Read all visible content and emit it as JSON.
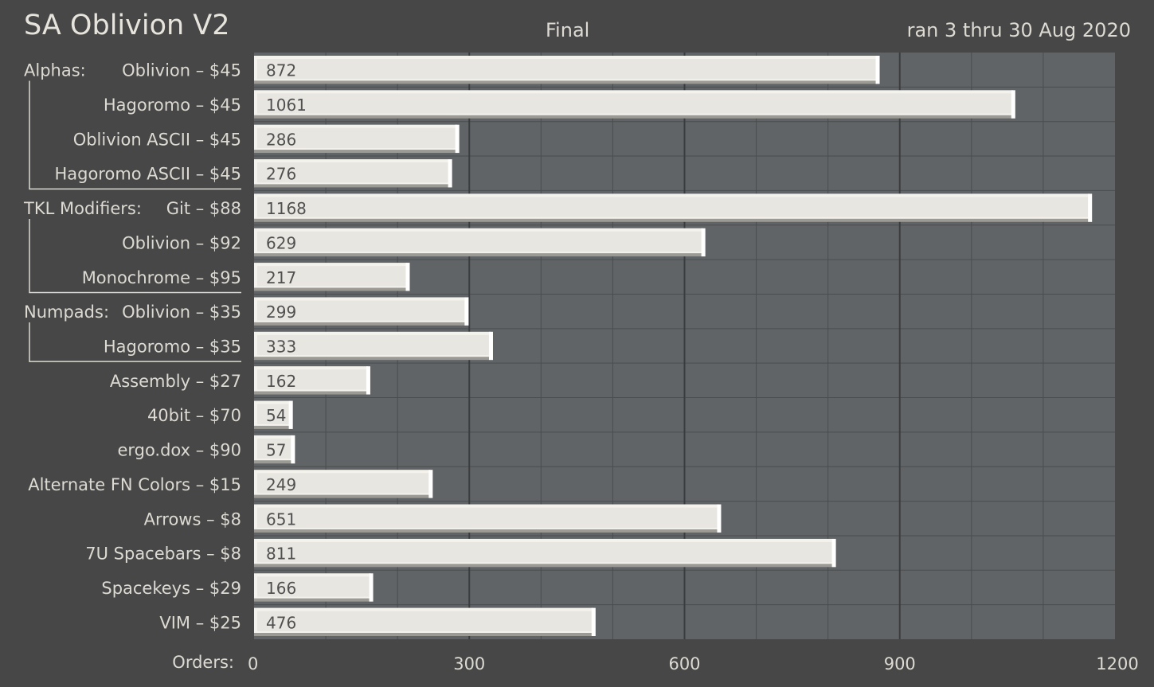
{
  "header": {
    "title": "SA Oblivion V2",
    "subtitle": "Final",
    "date_range": "ran 3 thru 30 Aug 2020"
  },
  "colors": {
    "background": "#474747",
    "plot_background": "#606466",
    "bar_fill": "#e8e6e0",
    "text": "#dcdad2"
  },
  "chart_data": {
    "type": "bar",
    "orientation": "horizontal",
    "title": "SA Oblivion V2",
    "subtitle": "Final",
    "xlabel": "Orders:",
    "xlim": [
      0,
      1200
    ],
    "xticks": [
      0,
      300,
      600,
      900,
      1200
    ],
    "grid": true,
    "groups": [
      {
        "name": "Alphas:",
        "start": 0,
        "end": 3
      },
      {
        "name": "TKL Modifiers:",
        "start": 4,
        "end": 6
      },
      {
        "name": "Numpads:",
        "start": 7,
        "end": 8
      }
    ],
    "categories": [
      "Oblivion – $45",
      "Hagoromo – $45",
      "Oblivion ASCII – $45",
      "Hagoromo ASCII – $45",
      "Git – $88",
      "Oblivion – $92",
      "Monochrome – $95",
      "Oblivion – $35",
      "Hagoromo – $35",
      "Assembly – $27",
      "40bit – $70",
      "ergo.dox – $90",
      "Alternate FN Colors – $15",
      "Arrows – $8",
      "7U Spacebars – $8",
      "Spacekeys – $29",
      "VIM – $25"
    ],
    "values": [
      872,
      1061,
      286,
      276,
      1168,
      629,
      217,
      299,
      333,
      162,
      54,
      57,
      249,
      651,
      811,
      166,
      476
    ]
  }
}
